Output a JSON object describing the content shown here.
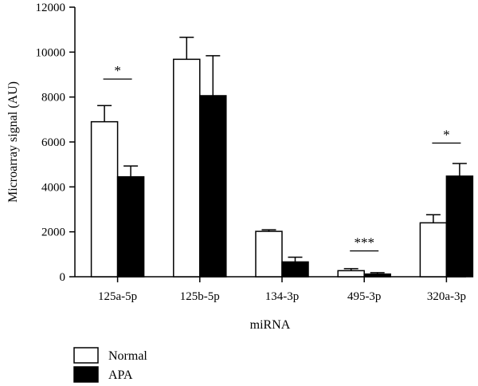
{
  "chart_data": {
    "type": "bar",
    "categories": [
      "125a-5p",
      "125b-5p",
      "134-3p",
      "495-3p",
      "320a-3p"
    ],
    "series": [
      {
        "name": "Normal",
        "color": "#ffffff",
        "values": [
          6900,
          9680,
          2020,
          270,
          2400
        ],
        "errors": [
          720,
          980,
          70,
          90,
          360
        ]
      },
      {
        "name": "APA",
        "color": "#000000",
        "values": [
          4450,
          8060,
          660,
          120,
          4480
        ],
        "errors": [
          480,
          1780,
          210,
          60,
          560
        ]
      }
    ],
    "xlabel": "miRNA",
    "ylabel": "Microarray signal (AU)",
    "ylim": [
      0,
      12000
    ],
    "yticks": [
      0,
      2000,
      4000,
      6000,
      8000,
      10000,
      12000
    ],
    "significance": [
      {
        "category_index": 0,
        "label": "*",
        "level": 8800
      },
      {
        "category_index": 3,
        "label": "***",
        "level": 1150
      },
      {
        "category_index": 4,
        "label": "*",
        "level": 5950
      }
    ],
    "legend_position": "bottom-left",
    "grid": false
  }
}
